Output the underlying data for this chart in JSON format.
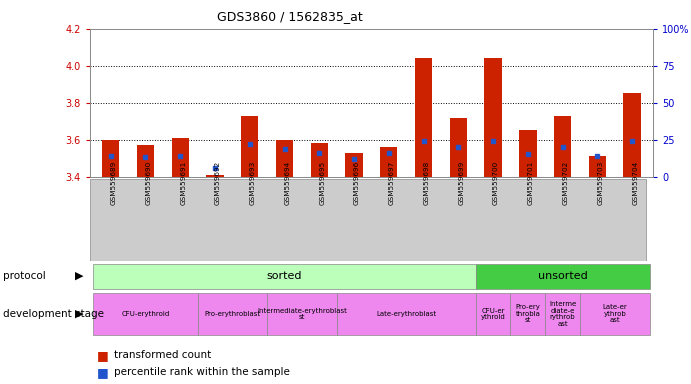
{
  "title": "GDS3860 / 1562835_at",
  "samples": [
    "GSM559689",
    "GSM559690",
    "GSM559691",
    "GSM559692",
    "GSM559693",
    "GSM559694",
    "GSM559695",
    "GSM559696",
    "GSM559697",
    "GSM559698",
    "GSM559699",
    "GSM559700",
    "GSM559701",
    "GSM559702",
    "GSM559703",
    "GSM559704"
  ],
  "transformed_count": [
    3.6,
    3.57,
    3.61,
    3.41,
    3.73,
    3.6,
    3.58,
    3.53,
    3.56,
    4.04,
    3.72,
    4.04,
    3.65,
    3.73,
    3.51,
    3.85
  ],
  "percentile_rank": [
    14,
    13,
    14,
    6,
    22,
    19,
    16,
    12,
    16,
    24,
    20,
    24,
    15,
    20,
    14,
    24
  ],
  "ylim": [
    3.4,
    4.2
  ],
  "yticks": [
    3.4,
    3.6,
    3.8,
    4.0,
    4.2
  ],
  "y2ticks": [
    0,
    25,
    50,
    75,
    100
  ],
  "y2lim": [
    0,
    100
  ],
  "bar_color": "#cc2200",
  "pct_color": "#2255cc",
  "bg_color": "#ffffff",
  "tick_label_color_left": "#cc0000",
  "tick_label_color_right": "#0000cc",
  "protocol_sorted_color": "#bbffbb",
  "protocol_unsorted_color": "#44cc44",
  "dev_stage_color": "#ee88ee",
  "xtick_bg_color": "#cccccc",
  "bar_width": 0.5,
  "bar_bottom": 3.4,
  "n_sorted": 11,
  "n_total": 16,
  "dev_stages_sorted": [
    {
      "label": "CFU-erythroid",
      "start": 0,
      "end": 3
    },
    {
      "label": "Pro-erythroblast",
      "start": 3,
      "end": 5
    },
    {
      "label": "Intermediate-erythroblast\nst",
      "start": 5,
      "end": 7
    },
    {
      "label": "Late-erythroblast",
      "start": 7,
      "end": 11
    }
  ],
  "dev_stages_unsorted": [
    {
      "label": "CFU-er\nythroid",
      "start": 11,
      "end": 12
    },
    {
      "label": "Pro-ery\nthrobla\nst",
      "start": 12,
      "end": 13
    },
    {
      "label": "Interme\ndiate-e\nrythrob\nast",
      "start": 13,
      "end": 14
    },
    {
      "label": "Late-er\nythrob\nast",
      "start": 14,
      "end": 16
    }
  ]
}
